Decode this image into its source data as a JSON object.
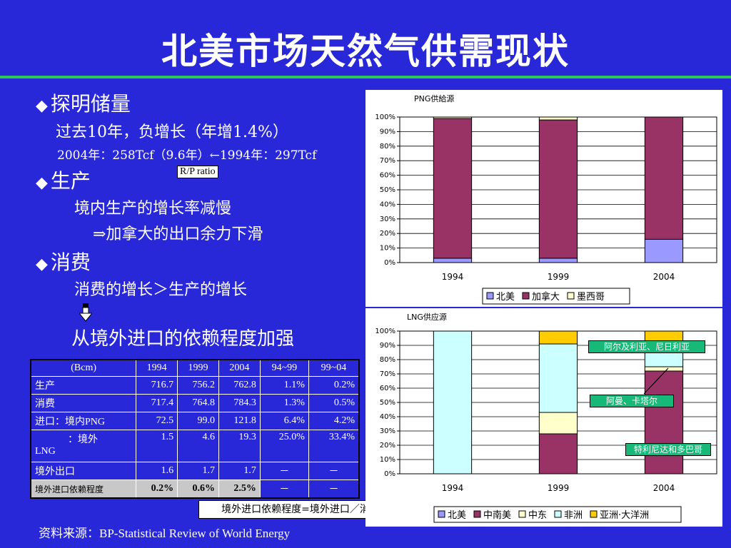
{
  "title": "北美市场天然气供需现状",
  "left": {
    "reserves_head": "探明储量",
    "reserves_line1": "过去10年，负增长（年增1.4%）",
    "reserves_line2": "2004年：258Tcf（9.6年）←1994年：297Tcf",
    "rp_label": "R/P ratio",
    "production_head": "生产",
    "production_line1": "境内生产的增长率减慢",
    "production_line2": "⇒加拿大的出口余力下滑",
    "consumption_head": "消费",
    "consumption_line1": "消费的增长＞生产的增长",
    "consumption_line2": "从境外进口的依赖程度加强"
  },
  "table": {
    "header": [
      "(Bcm)",
      "1994",
      "1999",
      "2004",
      "94~99",
      "99~04"
    ],
    "rows": [
      {
        "label": "生产",
        "values": [
          "716.7",
          "756.2",
          "762.8",
          "1.1%",
          "0.2%"
        ]
      },
      {
        "label": "消费",
        "values": [
          "717.4",
          "764.8",
          "784.3",
          "1.3%",
          "0.5%"
        ]
      },
      {
        "label": "进口：境内PNG",
        "values": [
          "72.5",
          "99.0",
          "121.8",
          "6.4%",
          "4.2%"
        ]
      },
      {
        "label": "：境外",
        "label2": "LNG",
        "values": [
          "1.5",
          "4.6",
          "19.3",
          "25.0%",
          "33.4%"
        ]
      },
      {
        "label": "境外出口",
        "values": [
          "1.6",
          "1.7",
          "1.7",
          "－",
          "－"
        ]
      },
      {
        "label": "境外进口依赖程度",
        "values": [
          "0.2%",
          "0.6%",
          "2.5%",
          "－",
          "－"
        ]
      }
    ]
  },
  "dependency_label": "境外进口依赖程度=境外进口／消费",
  "source": "资料来源：BP-Statistical Review of World Energy",
  "colors": {
    "background": "#2828d8",
    "rule": "#2ec85a",
    "north_america": "#9999ff",
    "canada": "#993366",
    "mexico": "#ffffcc",
    "central_south_america": "#993366",
    "middle_east": "#ffffcc",
    "africa": "#ccffff",
    "asia_pacific": "#ffcc00",
    "callout": "#18b878"
  },
  "chart_data": [
    {
      "type": "bar",
      "stacked": true,
      "title": "PNG供給源",
      "categories": [
        "1994",
        "1999",
        "2004"
      ],
      "yticks": [
        "100%",
        "90%",
        "80%",
        "70%",
        "60%",
        "50%",
        "40%",
        "30%",
        "20%",
        "10%",
        "0%"
      ],
      "ylim": [
        0,
        100
      ],
      "series": [
        {
          "name": "北美",
          "color": "#9999ff",
          "values": [
            3,
            3,
            16
          ]
        },
        {
          "name": "加拿大",
          "color": "#993366",
          "values": [
            96,
            95,
            84
          ]
        },
        {
          "name": "墨西哥",
          "color": "#ffffcc",
          "values": [
            1,
            2,
            0
          ]
        }
      ],
      "legend": "bottom"
    },
    {
      "type": "bar",
      "stacked": true,
      "title": "LNG供应源",
      "categories": [
        "1994",
        "1999",
        "2004"
      ],
      "yticks": [
        "100%",
        "90%",
        "80%",
        "70%",
        "60%",
        "50%",
        "40%",
        "30%",
        "20%",
        "10%",
        "0%"
      ],
      "ylim": [
        0,
        100
      ],
      "series": [
        {
          "name": "北美",
          "color": "#9999ff",
          "values": [
            0,
            0,
            0
          ]
        },
        {
          "name": "中南美",
          "color": "#993366",
          "values": [
            0,
            28,
            72
          ]
        },
        {
          "name": "中东",
          "color": "#ffffcc",
          "values": [
            0,
            15,
            3
          ]
        },
        {
          "name": "非洲",
          "color": "#ccffff",
          "values": [
            100,
            48,
            17
          ]
        },
        {
          "name": "亚洲·大洋洲",
          "color": "#ffcc00",
          "values": [
            0,
            9,
            8
          ]
        }
      ],
      "annotations": [
        "阿尔及利亚、尼日利亚",
        "阿曼、卡塔尔",
        "特利尼达和多巴哥"
      ],
      "legend": "bottom"
    }
  ]
}
